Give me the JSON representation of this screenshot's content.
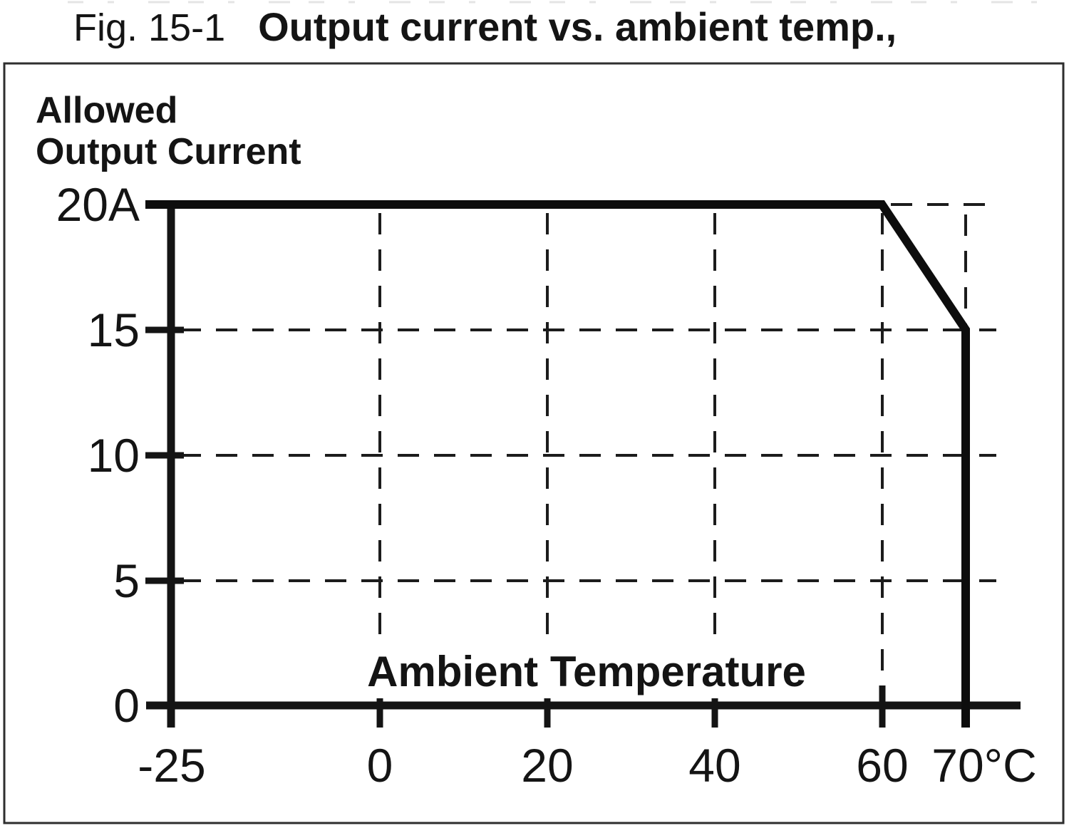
{
  "figure_caption": {
    "label": "Fig. 15-1",
    "title": "Output current vs. ambient temp.,"
  },
  "chart_data": {
    "type": "line",
    "title": "Output current vs. ambient temp.,",
    "ylabel": "Allowed Output Current",
    "ylabel_lines": [
      "Allowed",
      "Output Current"
    ],
    "xlabel": "Ambient Temperature",
    "x_unit": "°C",
    "y_unit": "A",
    "xlim": [
      -25,
      70
    ],
    "ylim": [
      0,
      20
    ],
    "grid": "dashed",
    "legend_position": "none",
    "y_ticks": [
      {
        "value": 20,
        "label": "20A"
      },
      {
        "value": 15,
        "label": "15"
      },
      {
        "value": 10,
        "label": "10"
      },
      {
        "value": 5,
        "label": "5"
      },
      {
        "value": 0,
        "label": "0"
      }
    ],
    "x_ticks": [
      {
        "value": -25,
        "label": "-25"
      },
      {
        "value": 0,
        "label": "0"
      },
      {
        "value": 20,
        "label": "20"
      },
      {
        "value": 40,
        "label": "40"
      },
      {
        "value": 60,
        "label": "60"
      },
      {
        "value": 70,
        "label": "70°C"
      }
    ],
    "series": [
      {
        "name": "allowed-output-current",
        "points": [
          {
            "x": -25,
            "y": 20
          },
          {
            "x": 60,
            "y": 20
          },
          {
            "x": 70,
            "y": 15
          },
          {
            "x": 70,
            "y": 0
          }
        ]
      }
    ]
  },
  "colors": {
    "ink": "#141414",
    "grid": "#1c1c1c",
    "frame_border": "#2e2e2e",
    "background": "#ffffff"
  }
}
